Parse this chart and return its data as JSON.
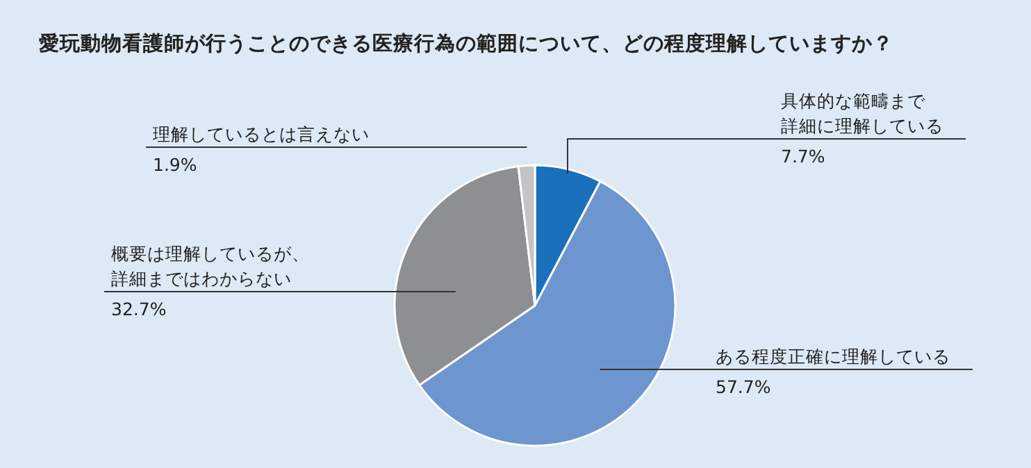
{
  "chart_data": {
    "type": "pie",
    "title": "愛玩動物看護師が行うことのできる医療行為の範囲について、どの程度理解していますか？",
    "categories": [
      "具体的な範疇まで詳細に理解している",
      "ある程度正確に理解している",
      "概要は理解しているが、詳細まではわからない",
      "理解しているとは言えない"
    ],
    "values": [
      7.7,
      57.7,
      32.7,
      1.9
    ],
    "value_labels": [
      "7.7%",
      "57.7%",
      "32.7%",
      "1.9%"
    ],
    "colors": [
      "#1a70ba",
      "#6d95d0",
      "#8e8f92",
      "#c4c4c6"
    ]
  }
}
